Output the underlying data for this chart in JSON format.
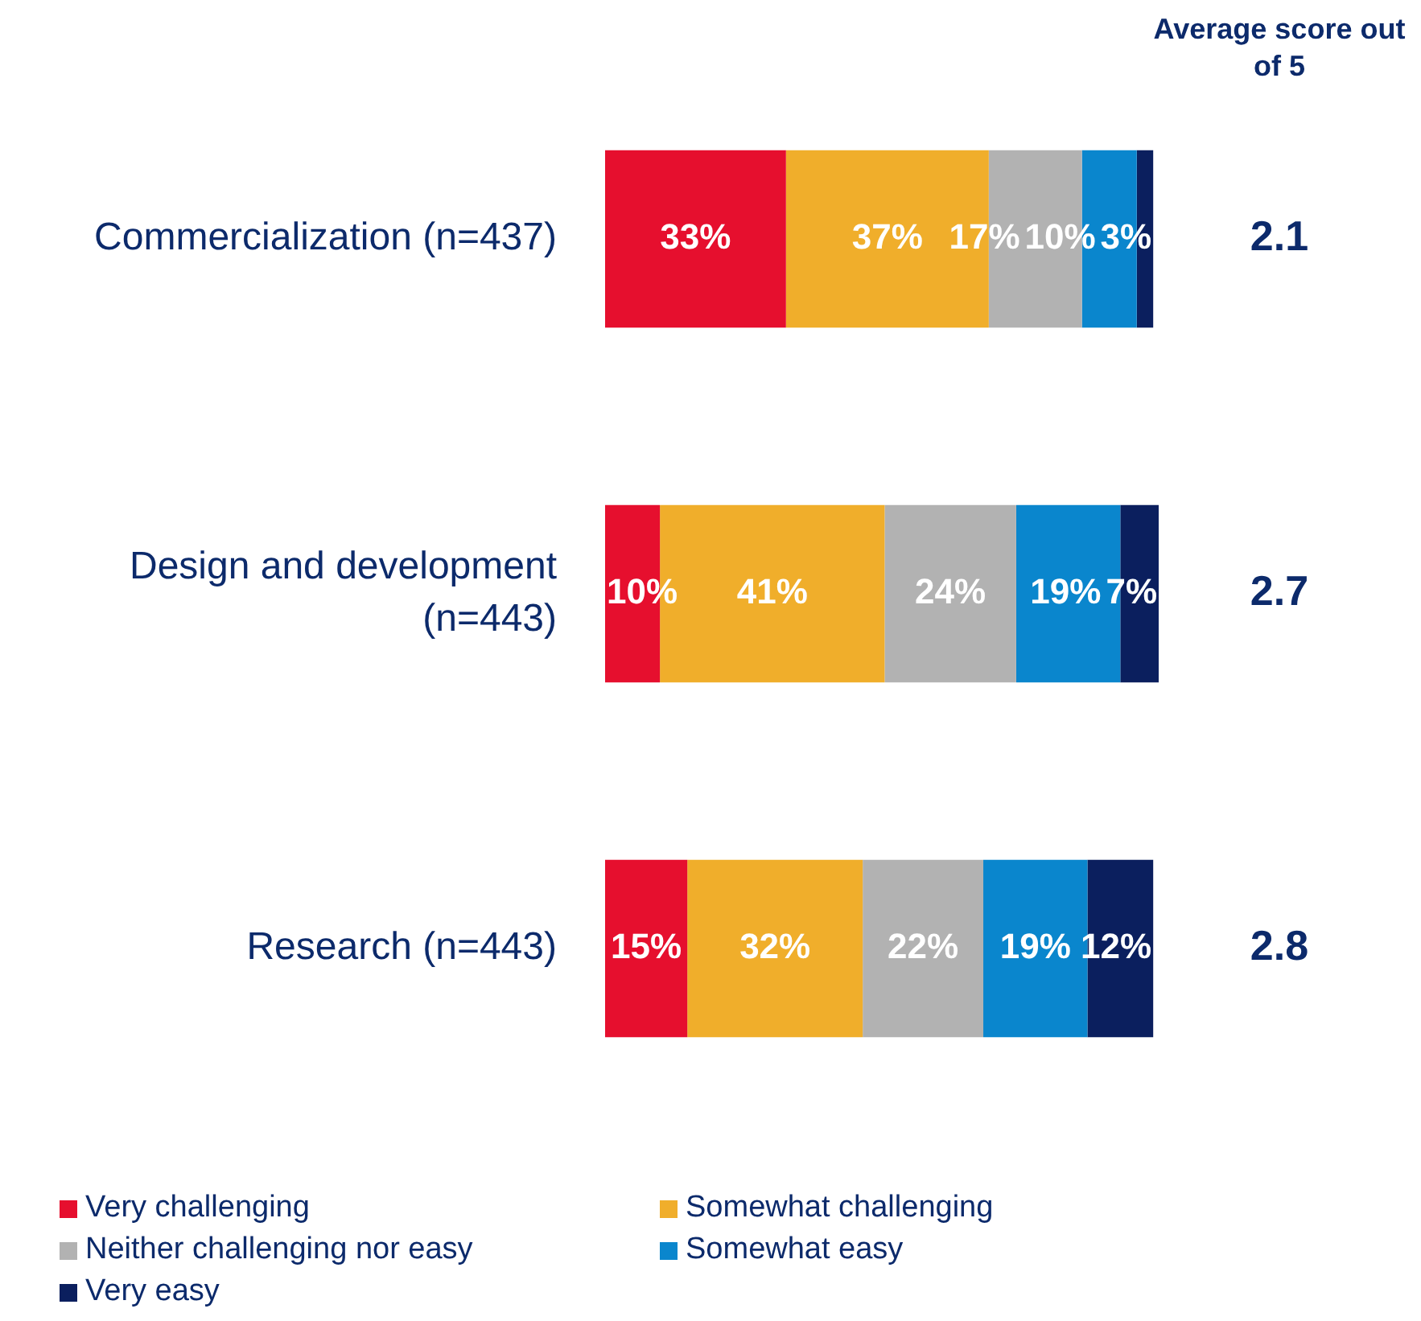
{
  "chart_data": {
    "type": "bar",
    "orientation": "horizontal",
    "stacked": true,
    "categories": [
      "Commercialization (n=437)",
      "Design and development (n=443)",
      "Research (n=443)"
    ],
    "series": [
      {
        "name": "Very challenging",
        "color": "#e60f2e",
        "values": [
          33,
          10,
          15
        ],
        "value_labels": [
          "33%",
          "10%",
          "15%"
        ]
      },
      {
        "name": "Somewhat challenging",
        "color": "#f0ae2b",
        "values": [
          37,
          41,
          32
        ],
        "value_labels": [
          "37%",
          "41%",
          "32%"
        ]
      },
      {
        "name": "Neither challenging nor easy",
        "color": "#b2b2b2",
        "values": [
          17,
          24,
          22
        ],
        "value_labels": [
          "17%",
          "24%",
          "22%"
        ]
      },
      {
        "name": "Somewhat easy",
        "color": "#0a86cd",
        "values": [
          10,
          19,
          19
        ],
        "value_labels": [
          "10%",
          "19%",
          "19%"
        ]
      },
      {
        "name": "Very easy",
        "color": "#0b1f5e",
        "values": [
          3,
          7,
          12
        ],
        "value_labels": [
          "3%",
          "7%",
          "12%"
        ]
      }
    ],
    "tick_labels": "y",
    "legend": "bottom",
    "annotations": [
      "Average score out of 5",
      "2.1",
      "2.7",
      "2.8"
    ]
  }
}
